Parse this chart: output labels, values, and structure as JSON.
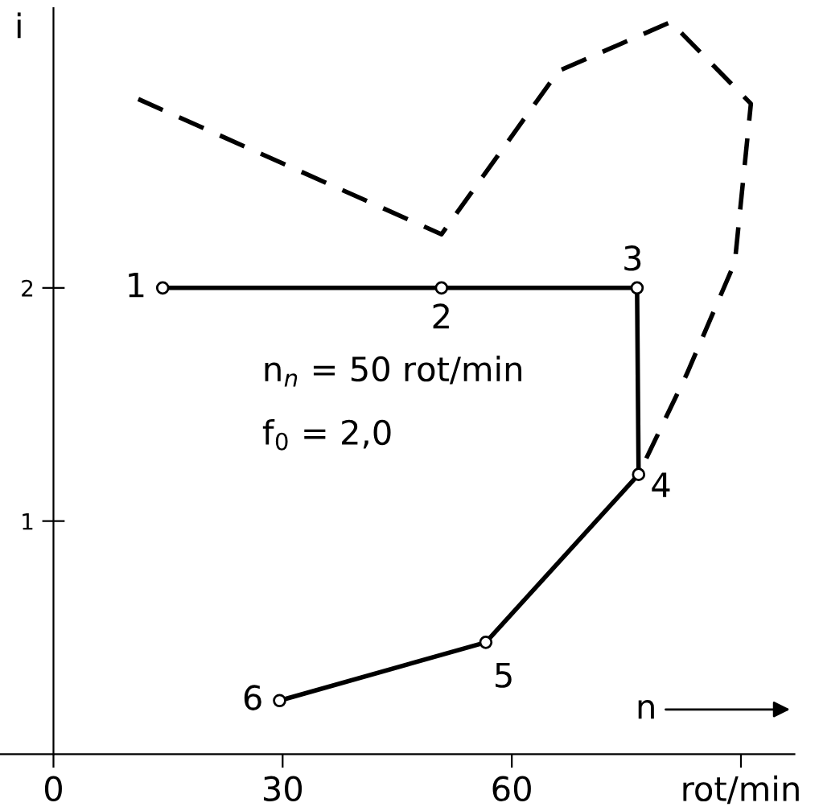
{
  "chart_data": {
    "type": "line",
    "xlabel": "n",
    "ylabel": "i",
    "xlim": [
      -7,
      97
    ],
    "ylim": [
      0,
      3.2
    ],
    "xticks": [
      0,
      30,
      60,
      {
        "value": 90,
        "label": "rot/min"
      }
    ],
    "yticks": [
      1,
      2
    ],
    "series": [
      {
        "x": [
          14.3,
          50.8,
          76.4,
          76.6,
          56.6,
          29.6
        ],
        "values": [
          2,
          2,
          2,
          1.2,
          0.48,
          0.23
        ],
        "color": "#000000",
        "marker": "circle",
        "line_style": "solid"
      },
      {
        "x": [
          11.1,
          50.8,
          66.1,
          80.8,
          91.3,
          89.2,
          82.9,
          76.6
        ],
        "values": [
          2.81,
          2.23,
          2.93,
          3.14,
          2.79,
          2.11,
          1.63,
          1.2
        ],
        "color": "#000000",
        "marker": "none",
        "line_style": "dashed"
      }
    ],
    "annotations": [
      {
        "text": "1",
        "x": 14.3,
        "y": 2
      },
      {
        "text": "2",
        "x": 50.8,
        "y": 2
      },
      {
        "text": "3",
        "x": 76.4,
        "y": 2
      },
      {
        "text": "4",
        "x": 76.6,
        "y": 1.2
      },
      {
        "text": "5",
        "x": 56.6,
        "y": 0.48
      },
      {
        "text": "6",
        "x": 29.6,
        "y": 0.23
      },
      "n$_{n}$ = 50 rot/min",
      "f$_{0}$ = 2,0"
    ],
    "grid": false,
    "legend": false
  }
}
